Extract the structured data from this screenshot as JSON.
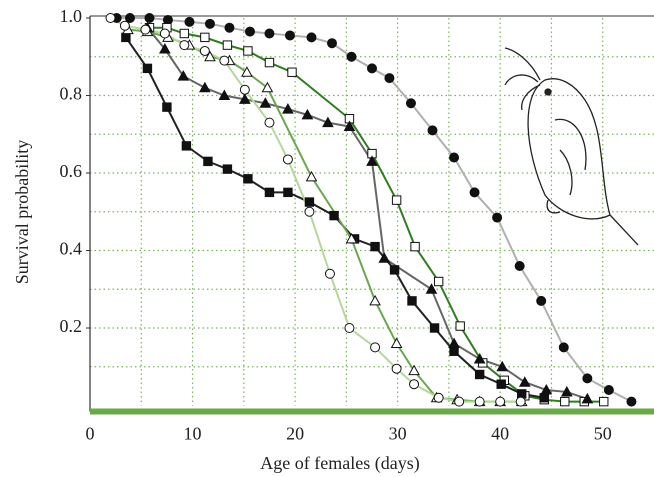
{
  "chart_data": {
    "type": "line",
    "xlabel": "Age of females (days)",
    "ylabel": "Survival probability",
    "xlim": [
      0,
      55
    ],
    "ylim": [
      0,
      1
    ],
    "xticks": [
      0,
      10,
      20,
      30,
      40,
      50
    ],
    "yticks": [
      0.2,
      0.4,
      0.6,
      0.8,
      {
        "value": 1,
        "label": "1.0"
      }
    ],
    "xgrid": [
      5,
      10,
      15,
      20,
      25,
      30,
      35,
      40,
      45,
      50
    ],
    "ygrid": [
      0.1,
      0.2,
      0.3,
      0.4,
      0.5,
      0.6,
      0.7,
      0.8,
      0.9
    ],
    "grid": true,
    "grid_color": "#7ab55c",
    "baseline_color": "#6aaa4a",
    "series": [
      {
        "color": "#b0b0b0",
        "marker": "circle",
        "marker_fill": "filled",
        "x": [
          2.6,
          3.9,
          5.8,
          7.6,
          9.7,
          11.7,
          13.6,
          15.6,
          17.5,
          19.5,
          21.6,
          23.6,
          25.5,
          27.5,
          29.2,
          31.3,
          33.4,
          35.5,
          37.5,
          39.7,
          41.9,
          44,
          46.2,
          48.5,
          50.6,
          52.8
        ],
        "values": [
          1.0,
          1.0,
          1.0,
          0.995,
          0.99,
          0.985,
          0.975,
          0.965,
          0.96,
          0.955,
          0.95,
          0.935,
          0.9,
          0.87,
          0.845,
          0.78,
          0.71,
          0.64,
          0.55,
          0.485,
          0.36,
          0.27,
          0.15,
          0.07,
          0.04,
          0.01
        ]
      },
      {
        "color": "#2e7d1e",
        "marker": "square",
        "marker_fill": "open",
        "x": [
          5.8,
          7.5,
          9.2,
          11.2,
          13.4,
          15.4,
          17.5,
          19.7,
          25.3,
          27.5,
          29.9,
          31.7,
          34,
          36.1,
          38.3,
          40.4,
          42.4,
          44.3,
          46.3,
          48.2,
          50.1
        ],
        "values": [
          0.975,
          0.975,
          0.96,
          0.95,
          0.93,
          0.915,
          0.885,
          0.86,
          0.74,
          0.65,
          0.53,
          0.41,
          0.32,
          0.205,
          0.11,
          0.065,
          0.025,
          0.015,
          0.01,
          0.01,
          0.01
        ]
      },
      {
        "color": "#666666",
        "marker": "triangle",
        "marker_fill": "filled",
        "x": [
          5.6,
          7.3,
          9.1,
          11.2,
          13.1,
          15.1,
          17.1,
          19.3,
          21.2,
          23.2,
          25.3,
          27.5,
          28.7,
          33.3,
          35.5,
          38,
          40.2,
          42.4,
          44.5,
          46.5,
          48.5
        ],
        "values": [
          0.975,
          0.92,
          0.85,
          0.82,
          0.8,
          0.79,
          0.78,
          0.765,
          0.75,
          0.73,
          0.72,
          0.63,
          0.38,
          0.3,
          0.16,
          0.12,
          0.1,
          0.06,
          0.04,
          0.035,
          0.017
        ]
      },
      {
        "color": "#222222",
        "marker": "square",
        "marker_fill": "filled",
        "x": [
          3.5,
          5.6,
          7.5,
          9.4,
          11.5,
          13.4,
          15.4,
          17.5,
          19.3,
          21.4,
          23.8,
          25.8,
          27.8,
          29.7,
          31.4,
          33.6,
          35.5,
          38,
          40.1,
          42.1,
          44.3
        ],
        "values": [
          0.95,
          0.87,
          0.77,
          0.67,
          0.63,
          0.61,
          0.585,
          0.55,
          0.55,
          0.525,
          0.49,
          0.43,
          0.41,
          0.35,
          0.27,
          0.2,
          0.14,
          0.08,
          0.055,
          0.03,
          0.02
        ]
      },
      {
        "color": "#6aa84f",
        "marker": "triangle",
        "marker_fill": "open",
        "x": [
          3.7,
          5.6,
          7.6,
          9.7,
          11.7,
          13.6,
          15.3,
          17.3,
          21.6,
          25.5,
          27.8,
          29.9,
          31.6,
          33.8,
          35.8,
          38,
          40,
          42.1
        ],
        "values": [
          0.97,
          0.965,
          0.95,
          0.93,
          0.9,
          0.89,
          0.86,
          0.82,
          0.59,
          0.43,
          0.27,
          0.16,
          0.09,
          0.02,
          0.015,
          0.01,
          0.01,
          0.01
        ]
      },
      {
        "color": "#b5d89a",
        "marker": "circle",
        "marker_fill": "open",
        "x": [
          2,
          3.4,
          5.4,
          7.3,
          9.2,
          11.2,
          13.1,
          15.1,
          17.5,
          19.3,
          21.4,
          23.4,
          25.3,
          27.8,
          29.9,
          31.6,
          34,
          36,
          38,
          40,
          42
        ],
        "values": [
          1.0,
          0.98,
          0.97,
          0.96,
          0.93,
          0.915,
          0.89,
          0.815,
          0.73,
          0.635,
          0.5,
          0.34,
          0.2,
          0.15,
          0.095,
          0.055,
          0.02,
          0.01,
          0.01,
          0.01,
          0.01
        ]
      }
    ]
  }
}
